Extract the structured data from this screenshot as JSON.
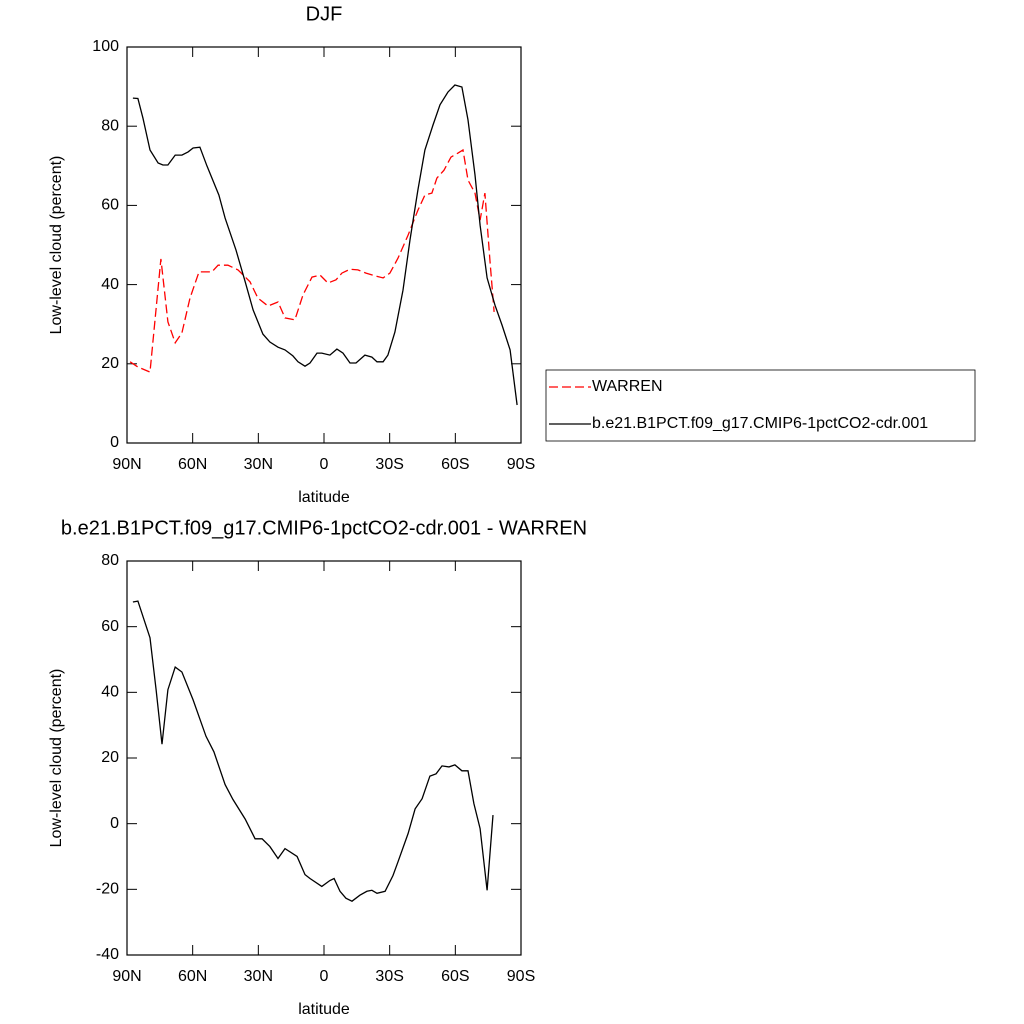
{
  "chart_data": [
    {
      "type": "line",
      "title": "DJF",
      "x_label": "latitude",
      "y_label": "Low-level cloud (percent)",
      "xlim": [
        90,
        -90
      ],
      "xticks": [
        {
          "value": 90,
          "label": "90N"
        },
        {
          "value": 60,
          "label": "60N"
        },
        {
          "value": 30,
          "label": "30N"
        },
        0,
        {
          "value": -30,
          "label": "30S"
        },
        {
          "value": -60,
          "label": "60S"
        },
        {
          "value": -90,
          "label": "90S"
        }
      ],
      "ylim": [
        0,
        100
      ],
      "yticks": [
        0,
        20,
        40,
        60,
        80,
        100
      ],
      "legend": "right",
      "series": [
        {
          "name": "WARREN",
          "color": "#ff0000",
          "dashed": true,
          "x": [
            88.6,
            85,
            79.5,
            74.5,
            71.3,
            68,
            64.9,
            61.2,
            57.1,
            54.4,
            51.2,
            48.4,
            43.9,
            39.3,
            33.8,
            30.2,
            25.6,
            21,
            17.8,
            13.3,
            9.6,
            5.5,
            1.8,
            -1.8,
            -5.5,
            -8.2,
            -11.9,
            -15.5,
            -19.2,
            -23.3,
            -27,
            -30.1,
            -33.8,
            -38.4,
            -42.9,
            -46.1,
            -49.3,
            -51.6,
            -54.8,
            -58,
            -61.2,
            -63.5,
            -65.8,
            -69,
            -71.3,
            -73.5,
            -75.8,
            -77.7
          ],
          "values": [
            20.5,
            19.2,
            17.9,
            46.5,
            30.6,
            25.3,
            27.8,
            36.6,
            43.2,
            43.2,
            43.2,
            44.9,
            44.9,
            43.7,
            40.7,
            36.6,
            34.6,
            35.6,
            31.6,
            31.1,
            37.4,
            41.9,
            42.4,
            40.4,
            41.2,
            42.9,
            43.9,
            43.7,
            42.9,
            42.2,
            41.7,
            42.9,
            46.7,
            52.5,
            58.8,
            62.6,
            63.1,
            66.9,
            68.9,
            72.2,
            73.2,
            74,
            66.4,
            63.1,
            56.3,
            63.1,
            46.2,
            33.1
          ]
        },
        {
          "name": "b.e21.B1PCT.f09_g17.CMIP6-1pctCO2-cdr.001",
          "color": "#000000",
          "dashed": false,
          "x": [
            87.3,
            85,
            82.7,
            79.5,
            75.8,
            73.6,
            71.3,
            68,
            64.9,
            62.1,
            59.8,
            56.7,
            53.5,
            48,
            45.2,
            40.2,
            36,
            32.4,
            27.9,
            24.7,
            21,
            17.8,
            14.2,
            11.9,
            8.7,
            6.4,
            3.2,
            1,
            -2.7,
            -5.9,
            -8.7,
            -11.9,
            -14.6,
            -18.7,
            -21.9,
            -24.2,
            -27,
            -29.2,
            -32.4,
            -36.1,
            -39.3,
            -42.9,
            -46.1,
            -49.8,
            -53,
            -56.6,
            -59.8,
            -63,
            -65.8,
            -69,
            -71.3,
            -74.5,
            -78.1,
            -81.3,
            -85,
            -88.2
          ],
          "values": [
            87.1,
            87,
            82,
            74,
            70.7,
            70.2,
            70.2,
            72.7,
            72.7,
            73.5,
            74.5,
            74.7,
            70,
            62.6,
            56.8,
            48.7,
            40.7,
            33.6,
            27.5,
            25.5,
            24.2,
            23.5,
            22,
            20.5,
            19.4,
            20.2,
            22.7,
            22.7,
            22.2,
            23.7,
            22.7,
            20.2,
            20.2,
            22.2,
            21.7,
            20.5,
            20.5,
            22.2,
            28,
            38.6,
            51.3,
            63.9,
            74,
            80.3,
            85.4,
            88.6,
            90.4,
            89.9,
            81.6,
            67.7,
            55,
            41.7,
            34.8,
            29.8,
            23.5,
            9.6
          ]
        }
      ]
    },
    {
      "type": "line",
      "title": "b.e21.B1PCT.f09_g17.CMIP6-1pctCO2-cdr.001 - WARREN",
      "x_label": "latitude",
      "y_label": "Low-level cloud (percent)",
      "xlim": [
        90,
        -90
      ],
      "xticks": [
        {
          "value": 90,
          "label": "90N"
        },
        {
          "value": 60,
          "label": "60N"
        },
        {
          "value": 30,
          "label": "30N"
        },
        0,
        {
          "value": -30,
          "label": "30S"
        },
        {
          "value": -60,
          "label": "60S"
        },
        {
          "value": -90,
          "label": "90S"
        }
      ],
      "ylim": [
        -40,
        80
      ],
      "yticks": [
        -40,
        -20,
        0,
        20,
        40,
        60,
        80
      ],
      "series": [
        {
          "color": "#000000",
          "dashed": false,
          "x": [
            87.3,
            85,
            79.5,
            76.7,
            74,
            71.3,
            68,
            64.9,
            59.8,
            53.9,
            50.3,
            45.2,
            41.6,
            36,
            31.5,
            28.3,
            24.7,
            21,
            17.8,
            12.3,
            8.7,
            6.4,
            1,
            -2.7,
            -4.6,
            -7.3,
            -10,
            -12.8,
            -16.4,
            -19.6,
            -21.9,
            -24.2,
            -27.9,
            -31.5,
            -33.8,
            -38.4,
            -41.6,
            -44.8,
            -48.4,
            -51.2,
            -53.9,
            -57.1,
            -59.8,
            -63,
            -65.8,
            -68.5,
            -71.3,
            -74.5,
            -77.2
          ],
          "values": [
            67.5,
            67.8,
            56.6,
            40.8,
            24.2,
            40.8,
            47.7,
            46.2,
            37.7,
            26.6,
            21.9,
            11.9,
            7.4,
            1.4,
            -4.6,
            -4.6,
            -7,
            -10.6,
            -7.6,
            -10,
            -15.5,
            -16.7,
            -19.1,
            -17.3,
            -16.7,
            -20.6,
            -22.7,
            -23.6,
            -21.8,
            -20.6,
            -20.3,
            -21.2,
            -20.6,
            -15.8,
            -11.6,
            -3,
            4.5,
            7.6,
            14.5,
            15.2,
            17.6,
            17.3,
            17.9,
            16.1,
            16.1,
            6.1,
            -1.5,
            -20.3,
            2.6
          ]
        }
      ]
    }
  ]
}
